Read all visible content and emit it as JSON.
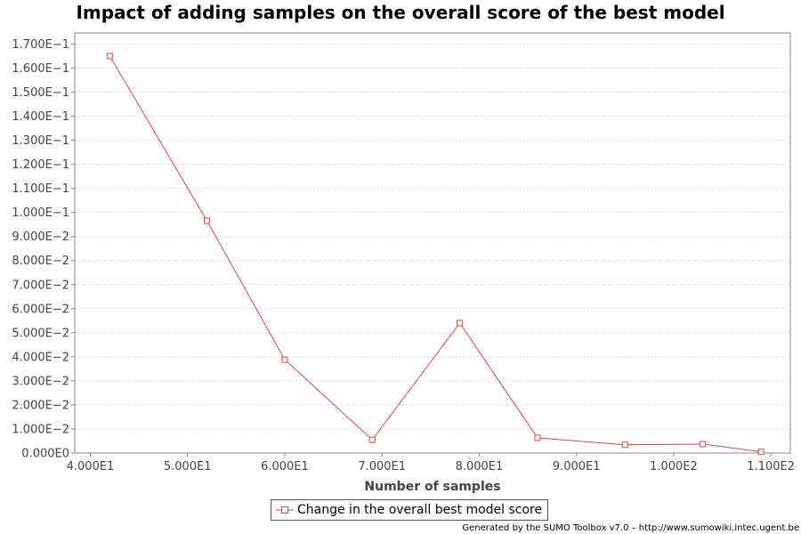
{
  "chart_data": {
    "type": "line",
    "title": "Impact of adding samples on the overall score of the best model",
    "xlabel": "Number of samples",
    "ylabel": "",
    "xlim": [
      38.4,
      112
    ],
    "ylim": [
      0,
      0.1746
    ],
    "xticks": [
      {
        "value": 40,
        "label": "4.000E1"
      },
      {
        "value": 50,
        "label": "5.000E1"
      },
      {
        "value": 60,
        "label": "6.000E1"
      },
      {
        "value": 70,
        "label": "7.000E1"
      },
      {
        "value": 80,
        "label": "8.000E1"
      },
      {
        "value": 90,
        "label": "9.000E1"
      },
      {
        "value": 100,
        "label": "1.000E2"
      },
      {
        "value": 110,
        "label": "1.100E2"
      }
    ],
    "yticks": [
      {
        "value": 0.0,
        "label": "0.000E0"
      },
      {
        "value": 0.01,
        "label": "1.000E−2"
      },
      {
        "value": 0.02,
        "label": "2.000E−2"
      },
      {
        "value": 0.03,
        "label": "3.000E−2"
      },
      {
        "value": 0.04,
        "label": "4.000E−2"
      },
      {
        "value": 0.05,
        "label": "5.000E−2"
      },
      {
        "value": 0.06,
        "label": "6.000E−2"
      },
      {
        "value": 0.07,
        "label": "7.000E−2"
      },
      {
        "value": 0.08,
        "label": "8.000E−2"
      },
      {
        "value": 0.09,
        "label": "9.000E−2"
      },
      {
        "value": 0.1,
        "label": "1.000E−1"
      },
      {
        "value": 0.11,
        "label": "1.100E−1"
      },
      {
        "value": 0.12,
        "label": "1.200E−1"
      },
      {
        "value": 0.13,
        "label": "1.300E−1"
      },
      {
        "value": 0.14,
        "label": "1.400E−1"
      },
      {
        "value": 0.15,
        "label": "1.500E−1"
      },
      {
        "value": 0.16,
        "label": "1.600E−1"
      },
      {
        "value": 0.17,
        "label": "1.700E−1"
      }
    ],
    "grid": true,
    "legend_position": "bottom-center",
    "series": [
      {
        "name": "Change in the overall best model score",
        "color": "#e8413c",
        "marker": "square",
        "x": [
          42,
          52,
          60,
          69,
          78,
          86,
          95,
          103,
          109
        ],
        "y": [
          0.165,
          0.0965,
          0.0388,
          0.0055,
          0.054,
          0.0063,
          0.0034,
          0.0037,
          0.0005
        ]
      }
    ]
  },
  "footer": "Generated by the SUMO Toolbox v7.0 – http://www.sumowiki.intec.ugent.be"
}
